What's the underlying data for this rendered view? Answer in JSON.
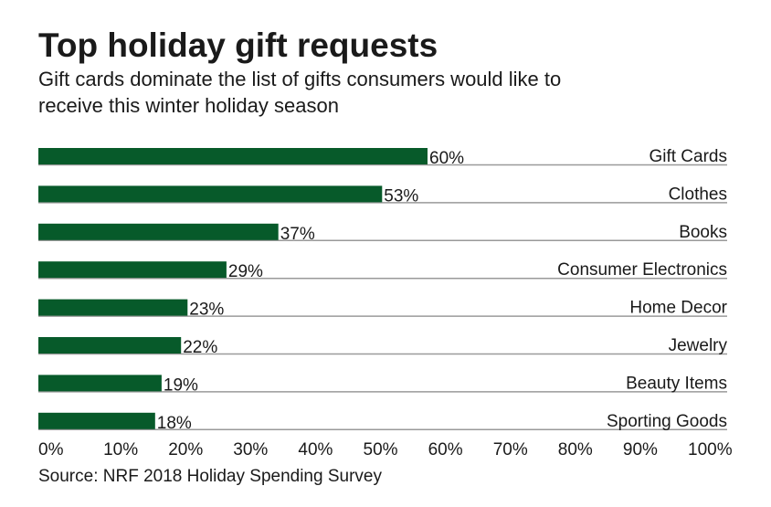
{
  "chart_data": {
    "type": "bar",
    "orientation": "horizontal",
    "title": "Top holiday gift requests",
    "subtitle": "Gift cards dominate the list of gifts consumers would like to receive this winter holiday season",
    "subtitle_lines": [
      "Gift cards dominate the list of gifts consumers would like to",
      "receive this winter holiday season"
    ],
    "categories": [
      "Gift Cards",
      "Clothes",
      "Books",
      "Consumer Electronics",
      "Home Decor",
      "Jewelry",
      "Beauty Items",
      "Sporting Goods"
    ],
    "values": [
      60,
      53,
      37,
      29,
      23,
      22,
      19,
      18
    ],
    "data_labels": [
      "60%",
      "53%",
      "37%",
      "29%",
      "23%",
      "22%",
      "19%",
      "18%"
    ],
    "xlim": [
      0,
      100
    ],
    "x_ticks": [
      "0%",
      "10%",
      "20%",
      "30%",
      "40%",
      "50%",
      "60%",
      "70%",
      "80%",
      "90%",
      "100%"
    ],
    "source": "Source: NRF 2018 Holiday Spending Survey",
    "grid": false,
    "bar_color": "#075a2a",
    "row_line_color": "#9a9a9a"
  }
}
